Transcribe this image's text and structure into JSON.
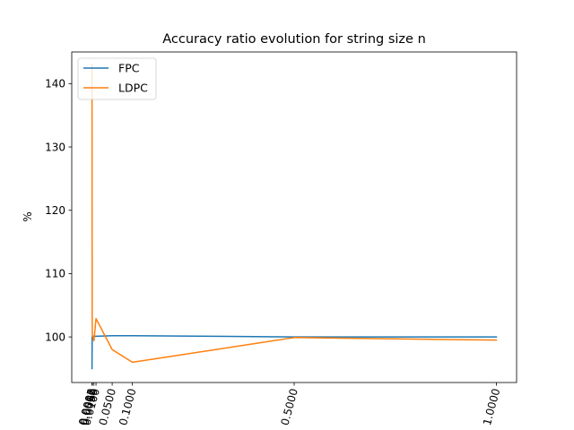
{
  "chart_data": {
    "type": "line",
    "title": "Accuracy ratio evolution for string size n",
    "xlabel": "",
    "ylabel": "%",
    "x": [
      0.0001,
      0.0005,
      0.001,
      0.005,
      0.01,
      0.05,
      0.1,
      0.5,
      1.0
    ],
    "x_tick_labels": [
      "0.0001",
      "0.0005",
      "0.0010",
      "0.0050",
      "0.0100",
      "0.0500",
      "0.1000",
      "0.5000",
      "1.0000"
    ],
    "y_ticks": [
      100,
      110,
      120,
      130,
      140
    ],
    "xlim": [
      -0.05,
      1.05
    ],
    "ylim": [
      92.8,
      145.0
    ],
    "grid": false,
    "legend_location": "upper left",
    "series": [
      {
        "name": "FPC",
        "color": "#1f77b4",
        "values": [
          95.0,
          100.0,
          100.1,
          100.1,
          100.1,
          100.2,
          100.2,
          100.0,
          100.0
        ]
      },
      {
        "name": "LDPC",
        "color": "#ff7f0e",
        "values": [
          143.0,
          102.5,
          100.2,
          99.4,
          102.9,
          98.0,
          96.0,
          99.9,
          99.5
        ]
      }
    ]
  }
}
